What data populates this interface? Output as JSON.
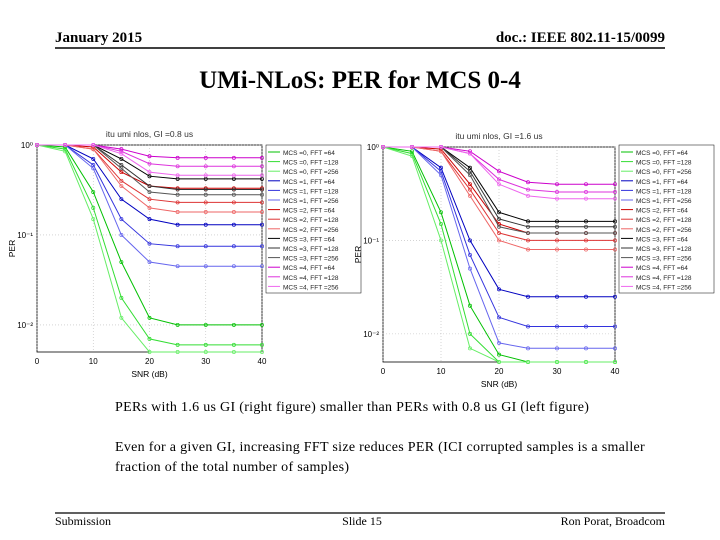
{
  "header": {
    "date": "January 2015",
    "doc": "doc.: IEEE 802.11-15/0099"
  },
  "title": "UMi-NLoS: PER for MCS 0-4",
  "chart_data": [
    {
      "type": "line",
      "title": "itu umi nlos, GI =0.8 us",
      "xlabel": "SNR (dB)",
      "ylabel": "PER",
      "x": [
        0,
        5,
        10,
        15,
        20,
        25,
        30,
        35,
        40
      ],
      "xlim": [
        0,
        40
      ],
      "xticks": [
        0,
        10,
        20,
        30,
        40
      ],
      "ylim": [
        0.005,
        1
      ],
      "log_y": true,
      "grid": true,
      "legend": "right",
      "yticks": [
        {
          "value": 1,
          "label": "10⁰"
        },
        {
          "value": 0.1,
          "label": "10⁻¹"
        },
        {
          "value": 0.01,
          "label": "10⁻²"
        }
      ],
      "series": [
        {
          "name": "MCS =0, FFT =64",
          "color": "#00c000",
          "values": [
            1,
            0.95,
            0.3,
            0.05,
            0.012,
            0.01,
            0.01,
            0.01,
            0.01
          ]
        },
        {
          "name": "MCS =0, FFT =128",
          "color": "#33dd33",
          "values": [
            1,
            0.9,
            0.2,
            0.02,
            0.007,
            0.006,
            0.006,
            0.006,
            0.006
          ]
        },
        {
          "name": "MCS =0, FFT =256",
          "color": "#66ee66",
          "values": [
            1,
            0.85,
            0.15,
            0.012,
            0.005,
            0.005,
            0.005,
            0.005,
            0.005
          ]
        },
        {
          "name": "MCS =1, FFT =64",
          "color": "#0000c0",
          "values": [
            1,
            1,
            0.7,
            0.25,
            0.15,
            0.13,
            0.13,
            0.13,
            0.13
          ]
        },
        {
          "name": "MCS =1, FFT =128",
          "color": "#3333dd",
          "values": [
            1,
            1,
            0.6,
            0.15,
            0.08,
            0.075,
            0.075,
            0.075,
            0.075
          ]
        },
        {
          "name": "MCS =1, FFT =256",
          "color": "#6666ee",
          "values": [
            1,
            1,
            0.55,
            0.1,
            0.05,
            0.045,
            0.045,
            0.045,
            0.045
          ]
        },
        {
          "name": "MCS =2, FFT =64",
          "color": "#cc0000",
          "values": [
            1,
            1,
            0.95,
            0.5,
            0.35,
            0.33,
            0.33,
            0.33,
            0.33
          ]
        },
        {
          "name": "MCS =2, FFT =128",
          "color": "#dd3333",
          "values": [
            1,
            1,
            0.9,
            0.4,
            0.25,
            0.23,
            0.23,
            0.23,
            0.23
          ]
        },
        {
          "name": "MCS =2, FFT =256",
          "color": "#ee6666",
          "values": [
            1,
            1,
            0.9,
            0.35,
            0.2,
            0.18,
            0.18,
            0.18,
            0.18
          ]
        },
        {
          "name": "MCS =3, FFT =64",
          "color": "#000000",
          "values": [
            1,
            1,
            1,
            0.7,
            0.45,
            0.42,
            0.42,
            0.42,
            0.42
          ]
        },
        {
          "name": "MCS =3, FFT =128",
          "color": "#333333",
          "values": [
            1,
            1,
            1,
            0.6,
            0.35,
            0.32,
            0.32,
            0.32,
            0.32
          ]
        },
        {
          "name": "MCS =3, FFT =256",
          "color": "#555555",
          "values": [
            1,
            1,
            1,
            0.55,
            0.3,
            0.28,
            0.28,
            0.28,
            0.28
          ]
        },
        {
          "name": "MCS =4, FFT =64",
          "color": "#cc00cc",
          "values": [
            1,
            1,
            1,
            0.9,
            0.75,
            0.72,
            0.72,
            0.72,
            0.72
          ]
        },
        {
          "name": "MCS =4, FFT =128",
          "color": "#dd33dd",
          "values": [
            1,
            1,
            1,
            0.85,
            0.62,
            0.58,
            0.58,
            0.58,
            0.58
          ]
        },
        {
          "name": "MCS =4, FFT =256",
          "color": "#ee66ee",
          "values": [
            1,
            1,
            1,
            0.8,
            0.5,
            0.46,
            0.46,
            0.46,
            0.46
          ]
        }
      ]
    },
    {
      "type": "line",
      "title": "itu umi nlos, GI =1.6 us",
      "xlabel": "SNR (dB)",
      "ylabel": "PER",
      "x": [
        0,
        5,
        10,
        15,
        20,
        25,
        30,
        35,
        40
      ],
      "xlim": [
        0,
        40
      ],
      "xticks": [
        0,
        10,
        20,
        30,
        40
      ],
      "ylim": [
        0.005,
        1
      ],
      "log_y": true,
      "grid": true,
      "legend": "right",
      "yticks": [
        {
          "value": 1,
          "label": "10⁰"
        },
        {
          "value": 0.1,
          "label": "10⁻¹"
        },
        {
          "value": 0.01,
          "label": "10⁻²"
        }
      ],
      "series": [
        {
          "name": "MCS =0, FFT =64",
          "color": "#00c000",
          "values": [
            1,
            0.9,
            0.2,
            0.02,
            0.006,
            0.005,
            0.005,
            0.005,
            0.005
          ]
        },
        {
          "name": "MCS =0, FFT =128",
          "color": "#33dd33",
          "values": [
            1,
            0.85,
            0.15,
            0.01,
            0.005,
            0.005,
            0.005,
            0.005,
            0.005
          ]
        },
        {
          "name": "MCS =0, FFT =256",
          "color": "#66ee66",
          "values": [
            1,
            0.8,
            0.1,
            0.007,
            0.005,
            0.005,
            0.005,
            0.005,
            0.005
          ]
        },
        {
          "name": "MCS =1, FFT =64",
          "color": "#0000c0",
          "values": [
            1,
            1,
            0.6,
            0.1,
            0.03,
            0.025,
            0.025,
            0.025,
            0.025
          ]
        },
        {
          "name": "MCS =1, FFT =128",
          "color": "#3333dd",
          "values": [
            1,
            1,
            0.55,
            0.07,
            0.015,
            0.012,
            0.012,
            0.012,
            0.012
          ]
        },
        {
          "name": "MCS =1, FFT =256",
          "color": "#6666ee",
          "values": [
            1,
            1,
            0.5,
            0.05,
            0.008,
            0.007,
            0.007,
            0.007,
            0.007
          ]
        },
        {
          "name": "MCS =2, FFT =64",
          "color": "#cc0000",
          "values": [
            1,
            1,
            0.95,
            0.4,
            0.15,
            0.12,
            0.12,
            0.12,
            0.12
          ]
        },
        {
          "name": "MCS =2, FFT =128",
          "color": "#dd3333",
          "values": [
            1,
            1,
            0.9,
            0.35,
            0.12,
            0.1,
            0.1,
            0.1,
            0.1
          ]
        },
        {
          "name": "MCS =2, FFT =256",
          "color": "#ee6666",
          "values": [
            1,
            1,
            0.9,
            0.3,
            0.1,
            0.08,
            0.08,
            0.08,
            0.08
          ]
        },
        {
          "name": "MCS =3, FFT =64",
          "color": "#000000",
          "values": [
            1,
            1,
            1,
            0.6,
            0.2,
            0.16,
            0.16,
            0.16,
            0.16
          ]
        },
        {
          "name": "MCS =3, FFT =128",
          "color": "#333333",
          "values": [
            1,
            1,
            1,
            0.55,
            0.17,
            0.14,
            0.14,
            0.14,
            0.14
          ]
        },
        {
          "name": "MCS =3, FFT =256",
          "color": "#555555",
          "values": [
            1,
            1,
            1,
            0.5,
            0.14,
            0.12,
            0.12,
            0.12,
            0.12
          ]
        },
        {
          "name": "MCS =4, FFT =64",
          "color": "#cc00cc",
          "values": [
            1,
            1,
            1,
            0.9,
            0.55,
            0.42,
            0.4,
            0.4,
            0.4
          ]
        },
        {
          "name": "MCS =4, FFT =128",
          "color": "#dd33dd",
          "values": [
            1,
            1,
            1,
            0.85,
            0.45,
            0.35,
            0.33,
            0.33,
            0.33
          ]
        },
        {
          "name": "MCS =4, FFT =256",
          "color": "#ee66ee",
          "values": [
            1,
            1,
            1,
            0.85,
            0.4,
            0.3,
            0.28,
            0.28,
            0.28
          ]
        }
      ]
    }
  ],
  "body": [
    "PERs with 1.6 us GI (right figure) smaller than PERs with 0.8 us GI (left figure)",
    "Even for a given GI, increasing FFT size reduces PER (ICI corrupted samples is a smaller fraction of the total number of samples)"
  ],
  "footer": {
    "left": "Submission",
    "center": "Slide 15",
    "right": "Ron Porat, Broadcom"
  }
}
